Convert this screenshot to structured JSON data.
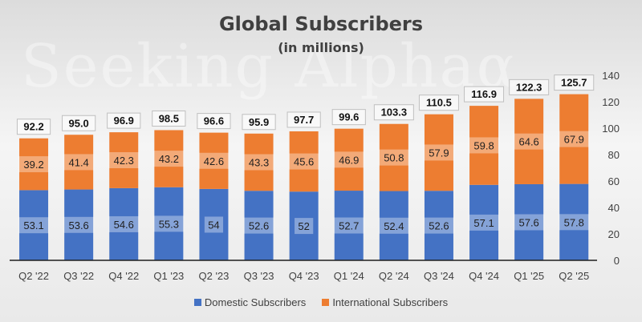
{
  "chart_data": {
    "type": "bar",
    "stacked": true,
    "title": "Global Subscribers",
    "subtitle": "(in millions)",
    "categories": [
      "Q2 '22",
      "Q3 '22",
      "Q4 '22",
      "Q1 '23",
      "Q2 '23",
      "Q3 '23",
      "Q4 '23",
      "Q1 '24",
      "Q2 '24",
      "Q3 '24",
      "Q4 '24",
      "Q1 '25",
      "Q2 '25"
    ],
    "series": [
      {
        "name": "Domestic Subscribers",
        "color": "#4472C4",
        "values": [
          53.1,
          53.6,
          54.6,
          55.3,
          54,
          52.6,
          52,
          52.7,
          52.4,
          52.6,
          57.1,
          57.6,
          57.8
        ],
        "labels": [
          "53.1",
          "53.6",
          "54.6",
          "55.3",
          "54",
          "52.6",
          "52",
          "52.7",
          "52.4",
          "52.6",
          "57.1",
          "57.6",
          "57.8"
        ]
      },
      {
        "name": "International Subscribers",
        "color": "#ED7D31",
        "values": [
          39.2,
          41.4,
          42.3,
          43.2,
          42.6,
          43.3,
          45.6,
          46.9,
          50.8,
          57.9,
          59.8,
          64.6,
          67.9
        ],
        "labels": [
          "39.2",
          "41.4",
          "42.3",
          "43.2",
          "42.6",
          "43.3",
          "45.6",
          "46.9",
          "50.8",
          "57.9",
          "59.8",
          "64.6",
          "67.9"
        ]
      }
    ],
    "totals": [
      92.2,
      95.0,
      96.9,
      98.5,
      96.6,
      95.9,
      97.7,
      99.6,
      103.3,
      110.5,
      116.9,
      122.3,
      125.7
    ],
    "total_labels": [
      "92.2",
      "95.0",
      "96.9",
      "98.5",
      "96.6",
      "95.9",
      "97.7",
      "99.6",
      "103.3",
      "110.5",
      "116.9",
      "122.3",
      "125.7"
    ],
    "y_axis": {
      "position": "right",
      "ylim": [
        0,
        140
      ],
      "ticks": [
        "0",
        "20",
        "40",
        "60",
        "80",
        "100",
        "120",
        "140"
      ]
    },
    "legend": {
      "placement": "bottom"
    },
    "grid": false
  },
  "watermark": "Seeking Alpha",
  "watermark_symbol": "α"
}
